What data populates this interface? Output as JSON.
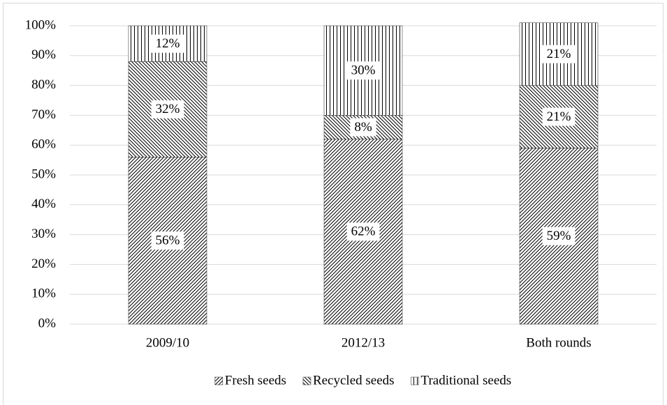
{
  "chart_data": {
    "type": "stacked-bar",
    "categories": [
      "2009/10",
      "2012/13",
      "Both rounds"
    ],
    "series": [
      {
        "name": "Fresh seeds",
        "color": "#000000",
        "pattern": "forward-diagonal",
        "values": [
          56,
          62,
          59
        ],
        "value_labels": [
          "56%",
          "62%",
          "59%"
        ]
      },
      {
        "name": "Recycled seeds",
        "color": "#000000",
        "pattern": "back-diagonal",
        "values": [
          32,
          8,
          21
        ],
        "value_labels": [
          "32%",
          "8%",
          "21%"
        ]
      },
      {
        "name": "Traditional seeds",
        "color": "#000000",
        "pattern": "vertical",
        "values": [
          12,
          30,
          21
        ],
        "value_labels": [
          "12%",
          "30%",
          "21%"
        ]
      }
    ],
    "ylim": [
      0,
      100
    ],
    "yticks": [
      {
        "value": 0,
        "label": "0%"
      },
      {
        "value": 10,
        "label": "10%"
      },
      {
        "value": 20,
        "label": "20%"
      },
      {
        "value": 30,
        "label": "30%"
      },
      {
        "value": 40,
        "label": "40%"
      },
      {
        "value": 50,
        "label": "50%"
      },
      {
        "value": 60,
        "label": "60%"
      },
      {
        "value": 70,
        "label": "70%"
      },
      {
        "value": 80,
        "label": "80%"
      },
      {
        "value": 90,
        "label": "90%"
      },
      {
        "value": 100,
        "label": "100%"
      }
    ],
    "grid": true,
    "legend": "bottom"
  }
}
